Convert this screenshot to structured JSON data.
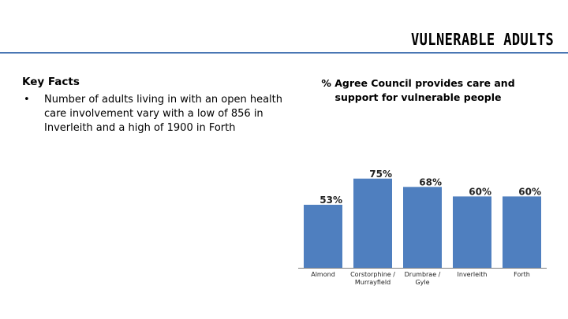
{
  "header": {
    "title": "VULNERABLE ADULTS"
  },
  "key_facts": {
    "heading": "Key Facts",
    "items": [
      {
        "bullet": "•",
        "text": "Number of adults living in with an open health care involvement vary with a low of 856 in Inverleith and a high of 1900 in Forth"
      }
    ]
  },
  "colors": {
    "bar": "#4f7fbf",
    "rule": "#4a77b4",
    "axis": "#808080"
  },
  "chart_data": {
    "type": "bar",
    "title": "% Agree Council provides care and support for vulnerable people",
    "categories": [
      [
        "Almond"
      ],
      [
        "Corstorphine /",
        "Murrayfield"
      ],
      [
        "Drumbrae /",
        "Gyle"
      ],
      [
        "Inverleith"
      ],
      [
        "Forth"
      ]
    ],
    "values": [
      53,
      75,
      68,
      60,
      60
    ],
    "value_labels": [
      "53%",
      "75%",
      "68%",
      "60%",
      "60%"
    ],
    "ylim": [
      0,
      100
    ],
    "xlabel": "",
    "ylabel": ""
  }
}
